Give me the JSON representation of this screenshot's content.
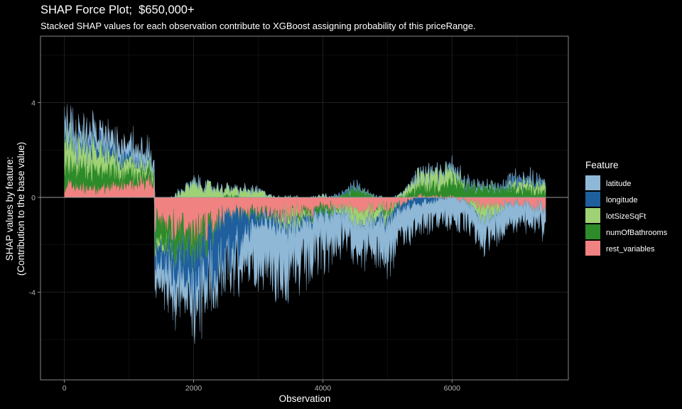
{
  "title": "SHAP Force Plot;  $650,000+",
  "subtitle": "Stacked SHAP values for each observation contribute to XGBoost assigning probability of this priceRange.",
  "chart_data": {
    "type": "area",
    "title": "SHAP Force Plot;  $650,000+",
    "subtitle": "Stacked SHAP values for each observation contribute to XGBoost assigning probability of this priceRange.",
    "xlabel": "Observation",
    "ylabel_line1": "SHAP values by feature:",
    "ylabel_line2": "(Contribution to the base value)",
    "xlim": [
      -370,
      7800
    ],
    "ylim": [
      -7.7,
      6.8
    ],
    "x_ticks": [
      0,
      2000,
      4000,
      6000
    ],
    "y_ticks": [
      -4,
      0,
      4
    ],
    "grid": true,
    "legend_title": "Feature",
    "legend_position": "right",
    "series": [
      {
        "name": "latitude",
        "color": "#8fb8d6",
        "x": [
          0,
          700,
          1400,
          1500,
          2000,
          2500,
          3000,
          3500,
          4000,
          4500,
          5000,
          5500,
          6000,
          6500,
          7000,
          7450
        ],
        "values": [
          0.4,
          0.5,
          0.3,
          -0.8,
          -1.0,
          -0.3,
          -1.8,
          -2.0,
          -1.5,
          -1.0,
          -1.5,
          -0.8,
          -0.9,
          -0.9,
          -0.7,
          -0.6
        ]
      },
      {
        "name": "longitude",
        "color": "#1f5f9e",
        "x": [
          0,
          700,
          1400,
          1500,
          2000,
          2500,
          3000,
          3500,
          4000,
          4500,
          5000,
          5500,
          6000,
          6500,
          7000,
          7450
        ],
        "values": [
          0.2,
          0.3,
          0.1,
          -0.7,
          -1.5,
          -2.0,
          -0.4,
          -0.2,
          -0.1,
          0.1,
          -0.2,
          -0.3,
          0.1,
          0.0,
          0.2,
          0.1
        ]
      },
      {
        "name": "lotSizeSqFt",
        "color": "#9fd175",
        "x": [
          0,
          700,
          1400,
          1500,
          2000,
          2500,
          3000,
          3500,
          4000,
          4500,
          5000,
          5500,
          6000,
          6500,
          7000,
          7450
        ],
        "values": [
          1.2,
          0.7,
          0.3,
          -0.3,
          0.6,
          0.3,
          0.3,
          -0.4,
          0.1,
          -0.5,
          -0.3,
          0.6,
          0.5,
          -0.6,
          0.3,
          0.3
        ]
      },
      {
        "name": "numOfBathrooms",
        "color": "#2e8b2a",
        "x": [
          0,
          700,
          1400,
          1500,
          2000,
          2500,
          3000,
          3500,
          4000,
          4500,
          5000,
          5500,
          6000,
          6500,
          7000,
          7450
        ],
        "values": [
          0.9,
          0.7,
          0.3,
          -0.9,
          -1.0,
          0.1,
          -0.2,
          0.0,
          -0.3,
          0.4,
          -0.2,
          0.4,
          0.6,
          0.4,
          0.4,
          0.3
        ]
      },
      {
        "name": "rest_variables",
        "color": "#f08282",
        "x": [
          0,
          700,
          1400,
          1500,
          2000,
          2500,
          3000,
          3500,
          4000,
          4500,
          5000,
          5500,
          6000,
          6500,
          7000,
          7450
        ],
        "values": [
          0.5,
          0.4,
          0.8,
          -1.0,
          -1.5,
          -0.8,
          -0.6,
          -0.8,
          -0.4,
          -0.5,
          -0.5,
          0.1,
          0.0,
          -0.4,
          -0.3,
          -0.5
        ]
      }
    ]
  }
}
